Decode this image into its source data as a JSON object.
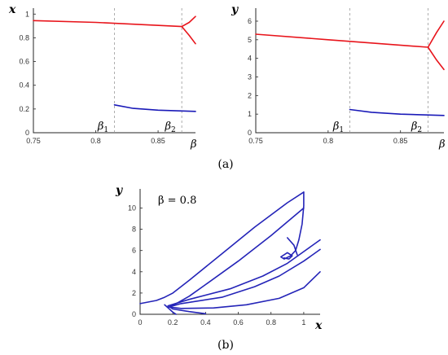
{
  "captions": {
    "top": "(a)",
    "bottom": "(b)"
  },
  "chart_data": [
    {
      "type": "line",
      "panel": "a-left",
      "xlabel": "β",
      "ylabel": "x",
      "xlim": [
        0.75,
        0.88
      ],
      "ylim": [
        0,
        1.05
      ],
      "xticks": [
        "0.75",
        "0.8",
        "0.85"
      ],
      "yticks": [
        "0",
        "0.2",
        "0.4",
        "0.6",
        "0.8",
        "1"
      ],
      "vlines": [
        {
          "x": 0.815,
          "label_base": "β",
          "label_sub": "1"
        },
        {
          "x": 0.869,
          "label_base": "β",
          "label_sub": "2"
        }
      ],
      "series": [
        {
          "color": "#e8141b",
          "points": [
            [
              0.75,
              0.945
            ],
            [
              0.8,
              0.93
            ],
            [
              0.869,
              0.895
            ]
          ]
        },
        {
          "color": "#e8141b",
          "points": [
            [
              0.869,
              0.895
            ],
            [
              0.875,
              0.93
            ],
            [
              0.88,
              0.98
            ]
          ]
        },
        {
          "color": "#e8141b",
          "points": [
            [
              0.869,
              0.895
            ],
            [
              0.875,
              0.82
            ],
            [
              0.88,
              0.75
            ]
          ]
        },
        {
          "color": "#1a1ab8",
          "points": [
            [
              0.815,
              0.235
            ],
            [
              0.83,
              0.205
            ],
            [
              0.85,
              0.19
            ],
            [
              0.88,
              0.18
            ]
          ]
        }
      ]
    },
    {
      "type": "line",
      "panel": "a-right",
      "xlabel": "β",
      "ylabel": "y",
      "xlim": [
        0.75,
        0.88
      ],
      "ylim": [
        0,
        6.7
      ],
      "xticks": [
        "0.75",
        "0.8",
        "0.85"
      ],
      "yticks": [
        "0",
        "1",
        "2",
        "3",
        "4",
        "5",
        "6"
      ],
      "vlines": [
        {
          "x": 0.815,
          "label_base": "β",
          "label_sub": "1"
        },
        {
          "x": 0.869,
          "label_base": "β",
          "label_sub": "2"
        }
      ],
      "series": [
        {
          "color": "#e8141b",
          "points": [
            [
              0.75,
              5.3
            ],
            [
              0.8,
              5.0
            ],
            [
              0.869,
              4.6
            ]
          ]
        },
        {
          "color": "#e8141b",
          "points": [
            [
              0.869,
              4.6
            ],
            [
              0.875,
              5.4
            ],
            [
              0.88,
              6.0
            ]
          ]
        },
        {
          "color": "#e8141b",
          "points": [
            [
              0.869,
              4.6
            ],
            [
              0.875,
              3.9
            ],
            [
              0.88,
              3.4
            ]
          ]
        },
        {
          "color": "#1a1ab8",
          "points": [
            [
              0.815,
              1.25
            ],
            [
              0.83,
              1.1
            ],
            [
              0.85,
              1.0
            ],
            [
              0.88,
              0.93
            ]
          ]
        }
      ]
    },
    {
      "type": "line",
      "panel": "b",
      "xlabel": "x",
      "ylabel": "y",
      "annotation": "β = 0.8",
      "xlim": [
        0,
        1.1
      ],
      "ylim": [
        0,
        11.8
      ],
      "xticks": [
        "0",
        "0.2",
        "0.4",
        "0.6",
        "0.8",
        "1"
      ],
      "yticks": [
        "0",
        "2",
        "4",
        "6",
        "8",
        "10"
      ],
      "series": [
        {
          "color": "#2424b8",
          "points": [
            [
              0.0,
              1.0
            ],
            [
              0.1,
              1.3
            ],
            [
              0.15,
              1.6
            ],
            [
              0.2,
              2.0
            ],
            [
              0.3,
              3.2
            ],
            [
              0.5,
              5.7
            ],
            [
              0.7,
              8.2
            ],
            [
              0.9,
              10.5
            ],
            [
              1.0,
              11.5
            ]
          ]
        },
        {
          "color": "#2424b8",
          "points": [
            [
              1.0,
              11.5
            ],
            [
              1.0,
              10.2
            ],
            [
              0.99,
              8.5
            ],
            [
              0.97,
              7.0
            ],
            [
              0.95,
              6.0
            ],
            [
              0.92,
              5.5
            ],
            [
              0.88,
              5.2
            ],
            [
              0.86,
              5.4
            ],
            [
              0.9,
              5.8
            ],
            [
              0.93,
              5.5
            ],
            [
              0.91,
              5.2
            ],
            [
              0.88,
              5.3
            ]
          ]
        },
        {
          "color": "#2424b8",
          "points": [
            [
              0.96,
              5.6
            ],
            [
              0.94,
              6.5
            ],
            [
              0.9,
              7.2
            ]
          ]
        },
        {
          "color": "#2424b8",
          "points": [
            [
              1.0,
              10.0
            ],
            [
              0.8,
              7.4
            ],
            [
              0.6,
              5.0
            ],
            [
              0.4,
              2.8
            ],
            [
              0.3,
              1.7
            ],
            [
              0.22,
              1.0
            ],
            [
              0.18,
              0.7
            ],
            [
              0.2,
              0.5
            ],
            [
              0.3,
              0.25
            ],
            [
              0.4,
              0.05
            ]
          ]
        },
        {
          "color": "#2424b8",
          "points": [
            [
              0.18,
              0.7
            ],
            [
              0.25,
              1.0
            ],
            [
              0.5,
              1.6
            ],
            [
              0.7,
              2.6
            ],
            [
              0.85,
              3.6
            ],
            [
              1.0,
              5.0
            ],
            [
              1.1,
              6.1
            ]
          ]
        },
        {
          "color": "#2424b8",
          "points": [
            [
              0.17,
              0.8
            ],
            [
              0.3,
              1.4
            ],
            [
              0.55,
              2.4
            ],
            [
              0.75,
              3.6
            ],
            [
              0.9,
              4.8
            ],
            [
              1.0,
              5.9
            ],
            [
              1.1,
              7.0
            ]
          ]
        },
        {
          "color": "#2424b8",
          "points": [
            [
              0.17,
              0.7
            ],
            [
              0.25,
              0.55
            ],
            [
              0.45,
              0.6
            ],
            [
              0.65,
              0.9
            ],
            [
              0.85,
              1.5
            ],
            [
              1.0,
              2.5
            ],
            [
              1.1,
              4.0
            ]
          ]
        },
        {
          "color": "#2424b8",
          "points": [
            [
              0.15,
              0.9
            ],
            [
              0.2,
              0.2
            ],
            [
              0.22,
              0.0
            ]
          ]
        }
      ]
    }
  ]
}
